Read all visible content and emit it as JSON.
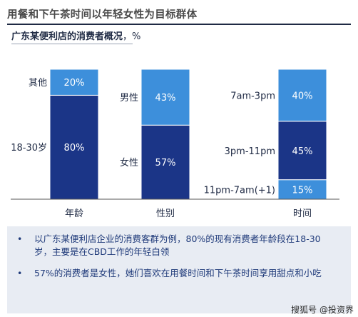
{
  "title": "用餐和下午茶时间以年轻女性为目标群体",
  "subtitle": "广东某便利店的消费者概况",
  "subtitle_unit": "，%",
  "colors": {
    "dark": "#1b3587",
    "light": "#3d8fdb",
    "axis": "#555555"
  },
  "chart_data": [
    {
      "type": "bar",
      "stacked": true,
      "category": "年龄",
      "segments": [
        {
          "name": "18-30岁",
          "value": 80,
          "label": "80%",
          "color": "dark"
        },
        {
          "name": "其他",
          "value": 20,
          "label": "20%",
          "color": "light"
        }
      ]
    },
    {
      "type": "bar",
      "stacked": true,
      "category": "性别",
      "segments": [
        {
          "name": "女性",
          "value": 57,
          "label": "57%",
          "color": "dark"
        },
        {
          "name": "男性",
          "value": 43,
          "label": "43%",
          "color": "light"
        }
      ]
    },
    {
      "type": "bar",
      "stacked": true,
      "category": "时间",
      "segments": [
        {
          "name": "11pm-7am(+1)",
          "value": 15,
          "label": "15%",
          "color": "light"
        },
        {
          "name": "3pm-11pm",
          "value": 45,
          "label": "45%",
          "color": "dark"
        },
        {
          "name": "7am-3pm",
          "value": 40,
          "label": "40%",
          "color": "light"
        }
      ]
    }
  ],
  "bullets": [
    "以广东某便利店企业的消费客群为例，80%的现有消费者年龄段在18-30岁，主要是在CBD工作的年轻白领",
    "57%的消费者是女性，她们喜欢在用餐时间和下午茶时间享用甜点和小吃"
  ],
  "bullet_marker": "•",
  "watermark": "搜狐号 @投资界"
}
